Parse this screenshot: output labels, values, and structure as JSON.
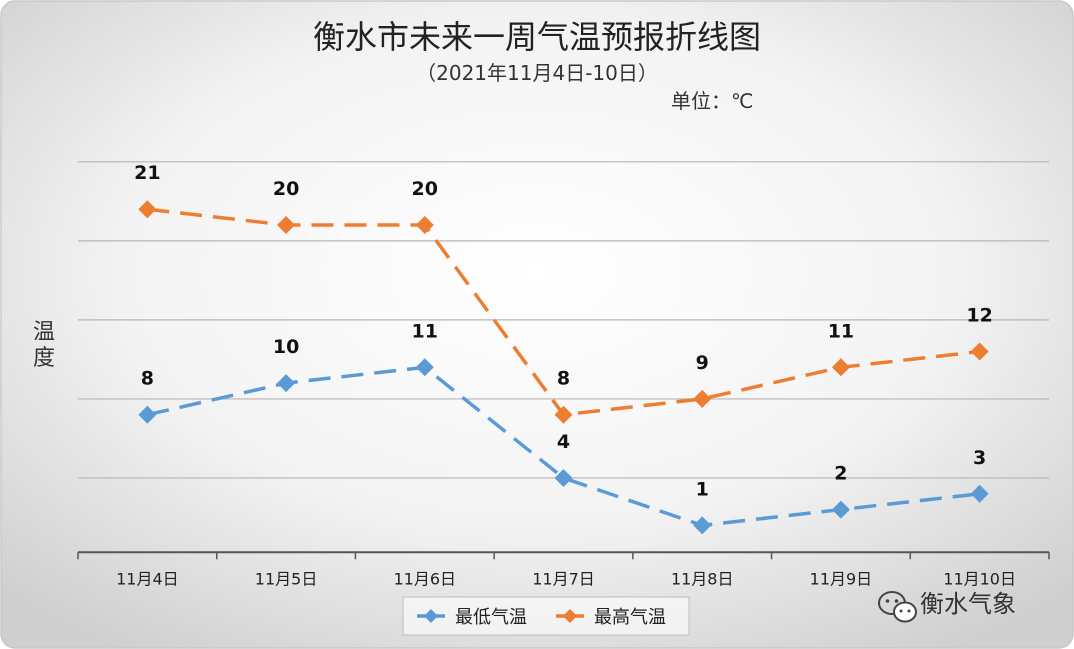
{
  "chart_data": {
    "type": "line",
    "title": "衡水市未来一周气温预报折线图",
    "subtitle": "（2021年11月4日-10日）",
    "unit_label": "单位：℃",
    "ylabel": "温度",
    "xlabel": "",
    "categories": [
      "11月4日",
      "11月5日",
      "11月6日",
      "11月7日",
      "11月8日",
      "11月9日",
      "11月10日"
    ],
    "ylim": [
      -1,
      25
    ],
    "gridlines": [
      4,
      9,
      14,
      19,
      24
    ],
    "grid": true,
    "legend": "bottom",
    "series": [
      {
        "name": "最低气温",
        "values": [
          8,
          10,
          11,
          4,
          1,
          2,
          3
        ],
        "color": "#5b9bd5",
        "dash": "dashed",
        "marker": "diamond"
      },
      {
        "name": "最高气温",
        "values": [
          21,
          20,
          20,
          8,
          9,
          11,
          12
        ],
        "color": "#ed7d31",
        "dash": "dashed",
        "marker": "diamond"
      }
    ]
  },
  "watermark": {
    "text": "衡水气象",
    "icon": "wechat-icon"
  }
}
